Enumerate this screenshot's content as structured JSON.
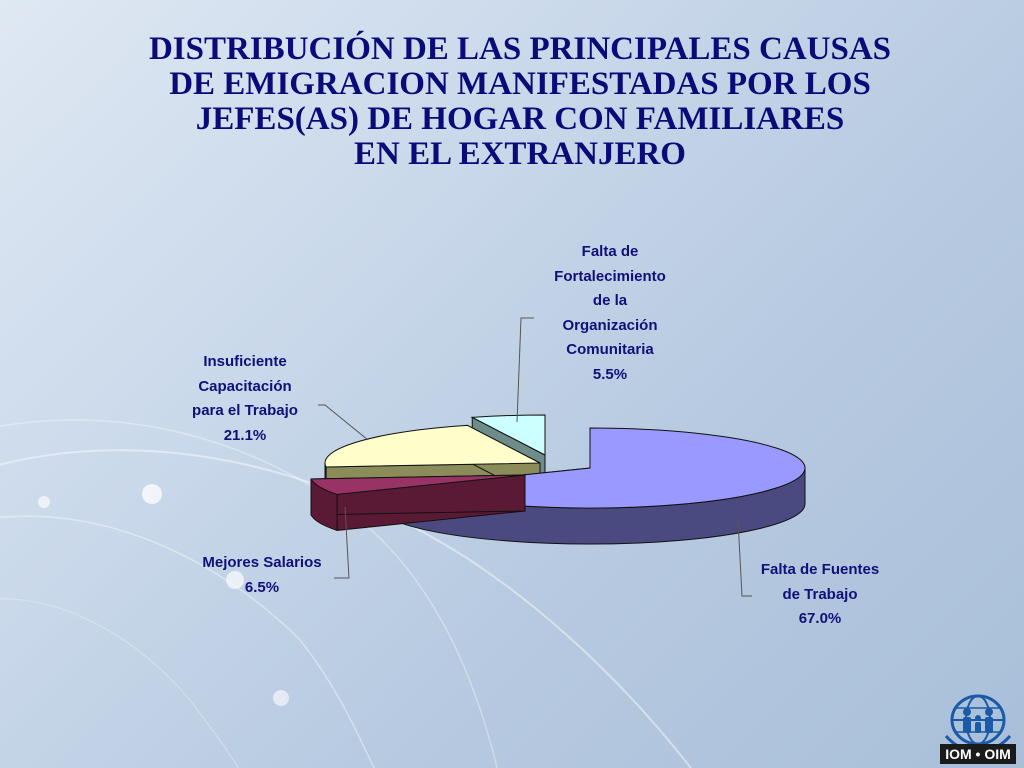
{
  "title_lines": [
    "DISTRIBUCIÓN DE LAS PRINCIPALES CAUSAS",
    "DE EMIGRACION MANIFESTADAS POR LOS",
    "JEFES(AS) DE HOGAR CON FAMILIARES",
    "EN EL EXTRANJERO"
  ],
  "chart_data": {
    "type": "pie",
    "style": "3d-exploded",
    "title": "DISTRIBUCIÓN DE LAS PRINCIPALES CAUSAS DE EMIGRACION MANIFESTADAS POR LOS JEFES(AS) DE HOGAR CON FAMILIARES EN EL EXTRANJERO",
    "slices": [
      {
        "label_lines": [
          "Falta de Fuentes",
          "de Trabajo"
        ],
        "value": 67.0,
        "value_label": "67.0%",
        "color": "#9999ff",
        "side_color": "#4a4a80"
      },
      {
        "label_lines": [
          "Mejores Salarios"
        ],
        "value": 6.5,
        "value_label": "6.5%",
        "color": "#993366",
        "side_color": "#5a1a36"
      },
      {
        "label_lines": [
          "Insuficiente",
          "Capacitación",
          "para el Trabajo"
        ],
        "value": 21.1,
        "value_label": "21.1%",
        "color": "#ffffcc",
        "side_color": "#8c8c5a"
      },
      {
        "label_lines": [
          "Falta de",
          "Fortalecimiento",
          "de la",
          "Organización",
          "Comunitaria"
        ],
        "value": 5.5,
        "value_label": "5.5%",
        "color": "#ccffff",
        "side_color": "#6e8c8a"
      }
    ],
    "legend": "none",
    "data_labels": "outside-with-leader-lines"
  },
  "logo": {
    "text": "IOM • OIM",
    "icon": "iom-globe-family-logo"
  }
}
